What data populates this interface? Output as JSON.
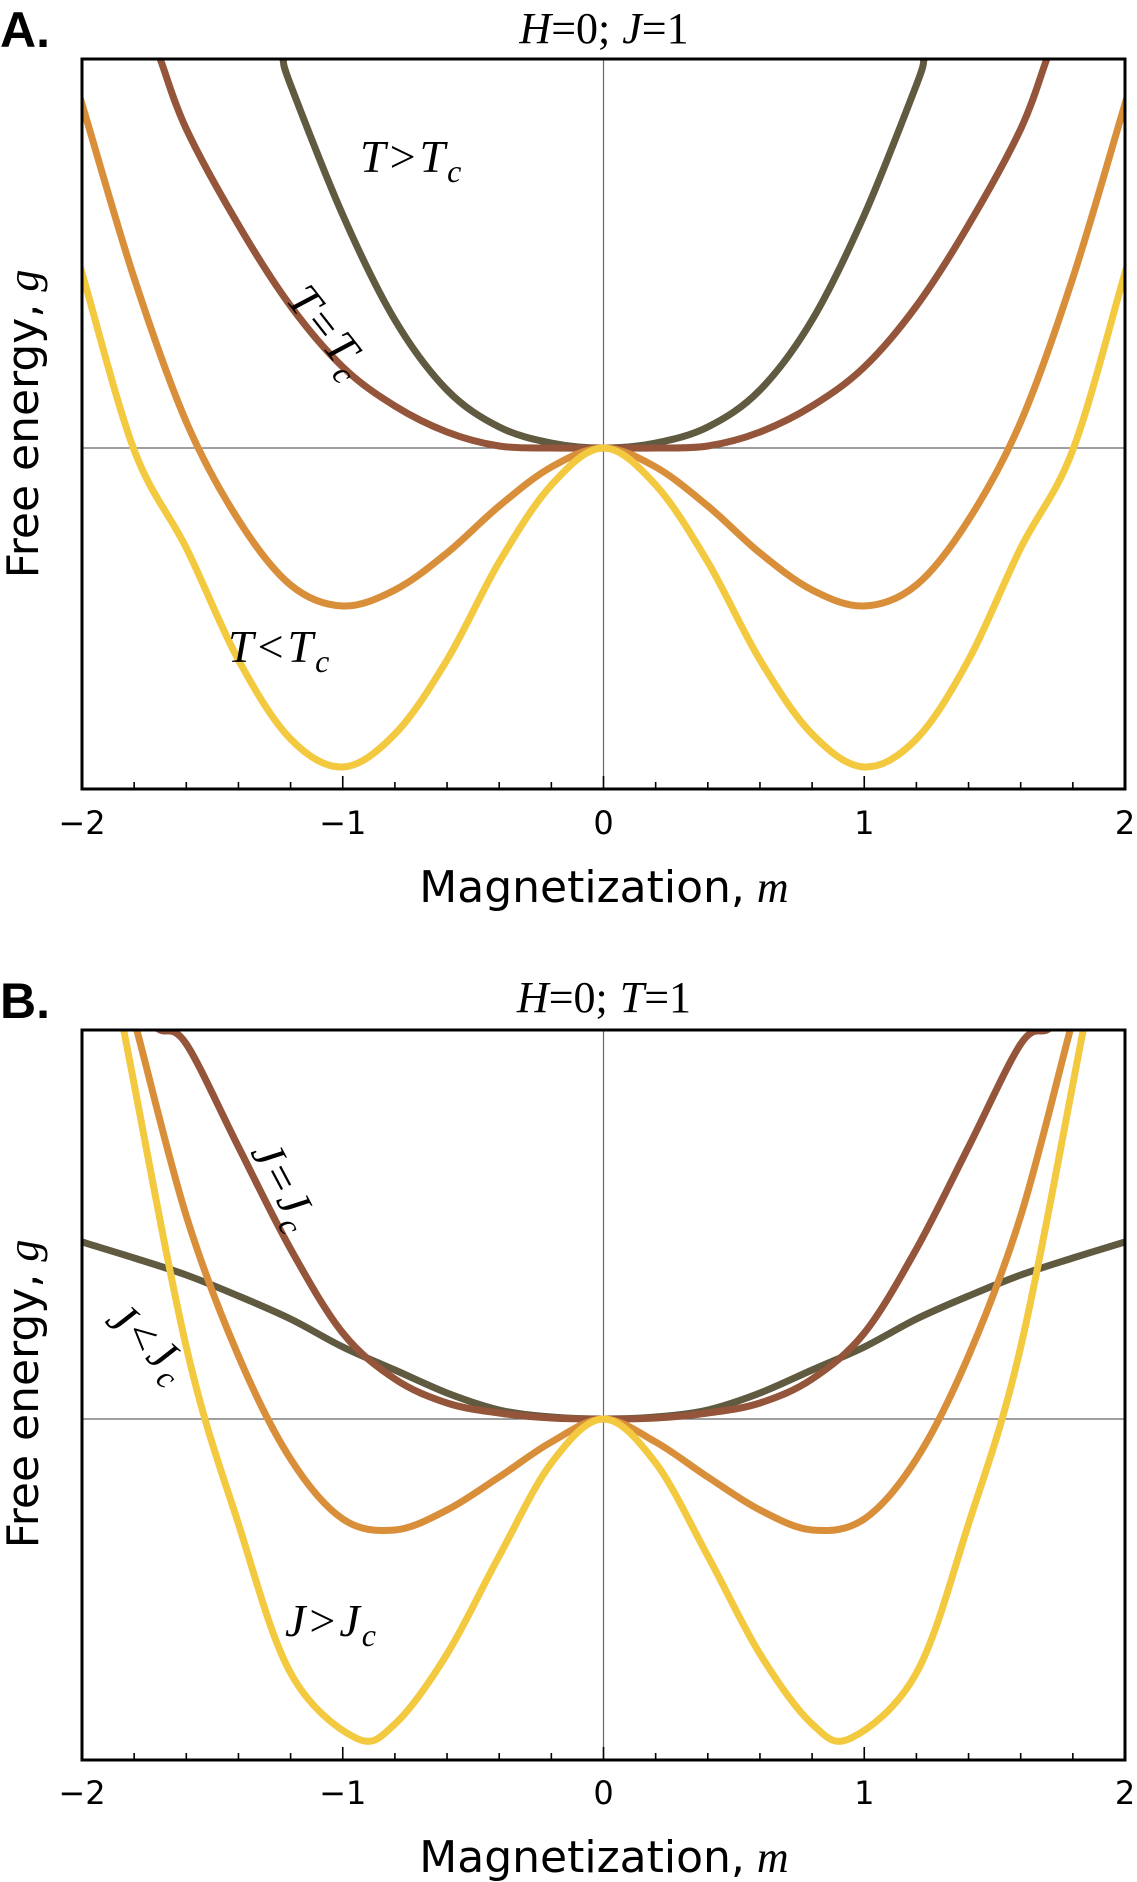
{
  "chart_data": [
    {
      "type": "line",
      "panel_label": "A.",
      "title": "H=0; J=1",
      "title_parts": {
        "a": "H",
        "b": "=0;",
        "c": "J",
        "d": "=1"
      },
      "xlabel": "Magnetization,",
      "xlabel_var": "m",
      "ylabel": "Free energy,",
      "ylabel_var": "g",
      "xlim": [
        -2,
        2
      ],
      "ylim": [
        -3.3,
        3.89
      ],
      "x_ticks": [
        "−2",
        "−1",
        "0",
        "1",
        "2"
      ],
      "x_tick_values": [
        -2,
        -1,
        0,
        1,
        2
      ],
      "minor_tick_step": 0.2,
      "grid": false,
      "zero_lines": true,
      "series": [
        {
          "name": "T>T_c",
          "label": {
            "a": "T",
            "op": ">",
            "b": "T",
            "sub": "c"
          },
          "color": "#5f5a40",
          "m": [
            0,
            0.2,
            0.4,
            0.6,
            0.8,
            1.0,
            1.2,
            1.23
          ],
          "g": [
            0,
            0.05,
            0.21,
            0.58,
            1.28,
            2.33,
            3.63,
            3.89
          ]
        },
        {
          "name": "T=T_c",
          "label": {
            "a": "T",
            "op": "=",
            "b": "T",
            "sub": "c"
          },
          "color": "#94553a",
          "m": [
            0,
            0.2,
            0.4,
            0.6,
            0.8,
            1.0,
            1.2,
            1.4,
            1.6,
            1.7
          ],
          "g": [
            0,
            0.0,
            0.02,
            0.16,
            0.42,
            0.81,
            1.42,
            2.23,
            3.19,
            3.89
          ]
        },
        {
          "name": "T<T_c (upper)",
          "label": null,
          "color": "#d98f3a",
          "m": [
            0,
            0.2,
            0.4,
            0.6,
            0.8,
            1.0,
            1.2,
            1.4,
            1.6,
            1.8,
            2.0
          ],
          "g": [
            0,
            -0.19,
            -0.58,
            -1.05,
            -1.42,
            -1.58,
            -1.37,
            -0.72,
            0.26,
            1.7,
            3.44
          ]
        },
        {
          "name": "T<T_c",
          "label": {
            "a": "T",
            "op": "<",
            "b": "T",
            "sub": "c"
          },
          "color": "#f2c93f",
          "m": [
            0,
            0.2,
            0.4,
            0.6,
            0.8,
            1.0,
            1.2,
            1.4,
            1.6,
            1.8,
            2.0
          ],
          "g": [
            0,
            -0.37,
            -1.14,
            -2.12,
            -2.86,
            -3.19,
            -2.91,
            -2.12,
            -1.0,
            -0.02,
            1.75
          ]
        }
      ]
    },
    {
      "type": "line",
      "panel_label": "B.",
      "title": "H=0; T=1",
      "title_parts": {
        "a": "H",
        "b": "=0;",
        "c": "T",
        "d": "=1"
      },
      "xlabel": "Magnetization,",
      "xlabel_var": "m",
      "ylabel": "Free energy,",
      "ylabel_var": "g",
      "xlim": [
        -2,
        2
      ],
      "ylim": [
        -3.3,
        3.89
      ],
      "x_ticks": [
        "−2",
        "−1",
        "0",
        "1",
        "2"
      ],
      "x_tick_values": [
        -2,
        -1,
        0,
        1,
        2
      ],
      "minor_tick_step": 0.2,
      "grid": false,
      "zero_lines": true,
      "series": [
        {
          "name": "J<J_c",
          "label": {
            "a": "J",
            "op": "<",
            "b": "J",
            "sub": "c"
          },
          "color": "#5f5a40",
          "m": [
            0,
            0.2,
            0.4,
            0.6,
            0.8,
            1.0,
            1.2,
            1.4,
            1.6,
            1.8,
            2.0
          ],
          "g": [
            0,
            0.02,
            0.09,
            0.26,
            0.49,
            0.72,
            1.0,
            1.23,
            1.44,
            1.61,
            1.77
          ]
        },
        {
          "name": "J=J_c",
          "label": {
            "a": "J",
            "op": "=",
            "b": "J",
            "sub": "c"
          },
          "color": "#94553a",
          "m": [
            0,
            0.2,
            0.4,
            0.6,
            0.8,
            1.0,
            1.2,
            1.4,
            1.6,
            1.7
          ],
          "g": [
            0,
            0.01,
            0.06,
            0.16,
            0.4,
            0.86,
            1.7,
            2.72,
            3.75,
            3.89
          ]
        },
        {
          "name": "J>J_c (lower)",
          "label": null,
          "color": "#d98f3a",
          "m": [
            0,
            0.2,
            0.4,
            0.6,
            0.8,
            1.0,
            1.2,
            1.4,
            1.6,
            1.79
          ],
          "g": [
            0,
            -0.23,
            -0.58,
            -0.91,
            -1.11,
            -1.0,
            -0.4,
            0.63,
            2.03,
            3.89
          ]
        },
        {
          "name": "J>J_c",
          "label": {
            "a": "J",
            "op": ">",
            "b": "J",
            "sub": "c"
          },
          "color": "#f2c93f",
          "m": [
            0,
            0.2,
            0.4,
            0.6,
            0.8,
            0.95,
            1.2,
            1.4,
            1.6,
            1.84
          ],
          "g": [
            0,
            -0.44,
            -1.37,
            -2.35,
            -3.05,
            -3.19,
            -2.54,
            -1.05,
            0.72,
            3.89
          ]
        }
      ]
    }
  ]
}
